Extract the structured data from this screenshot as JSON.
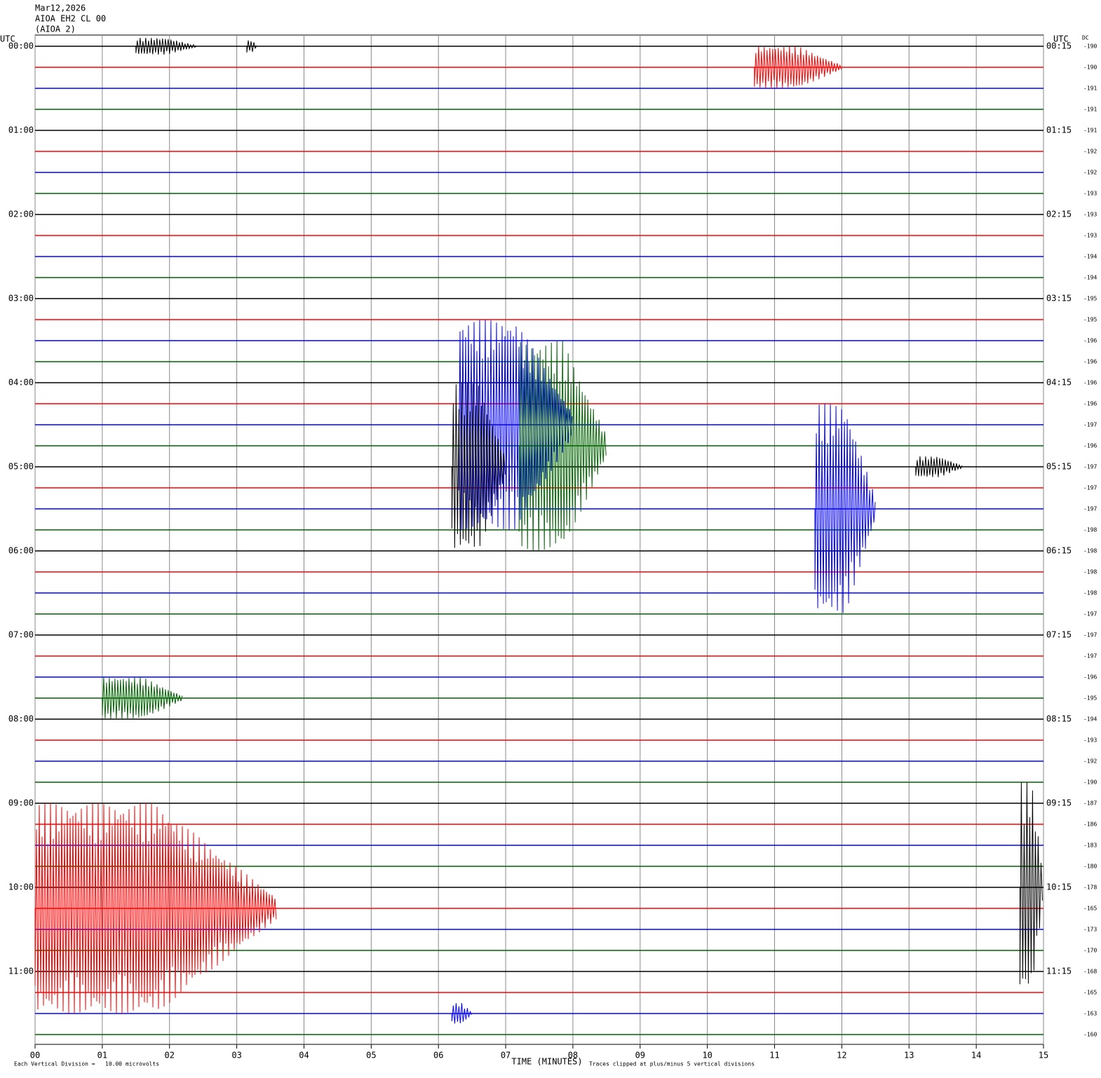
{
  "chart_data": {
    "type": "helicorder",
    "header": [
      "Mar12,2026",
      "AIOA EH2 CL 00",
      "(AIOA 2)"
    ],
    "left_axis_title": "UTC",
    "right_axis_title": "UTC",
    "dc_title": "DC",
    "left_labels": [
      "00:00",
      "01:00",
      "02:00",
      "03:00",
      "04:00",
      "05:00",
      "06:00",
      "07:00",
      "08:00",
      "09:00",
      "10:00",
      "11:00"
    ],
    "right_labels": [
      "00:15",
      "01:15",
      "02:15",
      "03:15",
      "04:15",
      "05:15",
      "06:15",
      "07:15",
      "08:15",
      "09:15",
      "10:15",
      "11:15"
    ],
    "dc": [
      -190,
      -190,
      -191,
      -191,
      -191,
      -192,
      -192,
      -193,
      -193,
      -193,
      -194,
      -194,
      -195,
      -195,
      -196,
      -196,
      -196,
      -196,
      -197,
      -196,
      -197,
      -197,
      -197,
      -198,
      -198,
      -198,
      -198,
      -197,
      -197,
      -197,
      -196,
      -195,
      -194,
      -193,
      -192,
      -190,
      -187,
      -186,
      -183,
      -180,
      -178,
      -165,
      -173,
      -170,
      -168,
      -165,
      -163,
      -160
    ],
    "colors": [
      "#000000",
      "#ff0000",
      "#0000ff",
      "#006400"
    ],
    "xlim": [
      0,
      15
    ],
    "xticks": [
      {
        "value": 0,
        "label": "00"
      },
      {
        "value": 1,
        "label": "01"
      },
      {
        "value": 2,
        "label": "02"
      },
      {
        "value": 3,
        "label": "03"
      },
      {
        "value": 4,
        "label": "04"
      },
      {
        "value": 5,
        "label": "05"
      },
      {
        "value": 6,
        "label": "06"
      },
      {
        "value": 7,
        "label": "07"
      },
      {
        "value": 8,
        "label": "08"
      },
      {
        "value": 9,
        "label": "09"
      },
      {
        "value": 10,
        "label": "10"
      },
      {
        "value": 11,
        "label": "11"
      },
      {
        "value": 12,
        "label": "12"
      },
      {
        "value": 13,
        "label": "13"
      },
      {
        "value": 14,
        "label": "14"
      },
      {
        "value": 15,
        "label": "15"
      }
    ],
    "xlabel": "TIME (MINUTES)",
    "footer_left": "Each Vertical Division =   10.00 microvolts",
    "footer_right": "Traces clipped at plus/minus 5 vertical divisions",
    "grid": true,
    "events": [
      {
        "row": 0,
        "start": 1.5,
        "end": 2.4,
        "amp": 0.4
      },
      {
        "row": 0,
        "start": 3.15,
        "end": 3.3,
        "amp": 0.3
      },
      {
        "row": 1,
        "start": 10.7,
        "end": 12,
        "amp": 1
      },
      {
        "row": 18,
        "start": 6.3,
        "end": 8,
        "amp": 5
      },
      {
        "row": 19,
        "start": 7.2,
        "end": 8.5,
        "amp": 5
      },
      {
        "row": 20,
        "start": 6.2,
        "end": 7,
        "amp": 4
      },
      {
        "row": 22,
        "start": 11.6,
        "end": 12.5,
        "amp": 5
      },
      {
        "row": 40,
        "start": 14.65,
        "end": 15,
        "amp": 5
      },
      {
        "row": 41,
        "start": 0,
        "end": 3.6,
        "amp": 5
      },
      {
        "row": 31,
        "start": 1,
        "end": 2.2,
        "amp": 1
      },
      {
        "row": 20,
        "start": 13.1,
        "end": 13.8,
        "amp": 0.5
      },
      {
        "row": 46,
        "start": 6.2,
        "end": 6.5,
        "amp": 0.5
      }
    ]
  }
}
